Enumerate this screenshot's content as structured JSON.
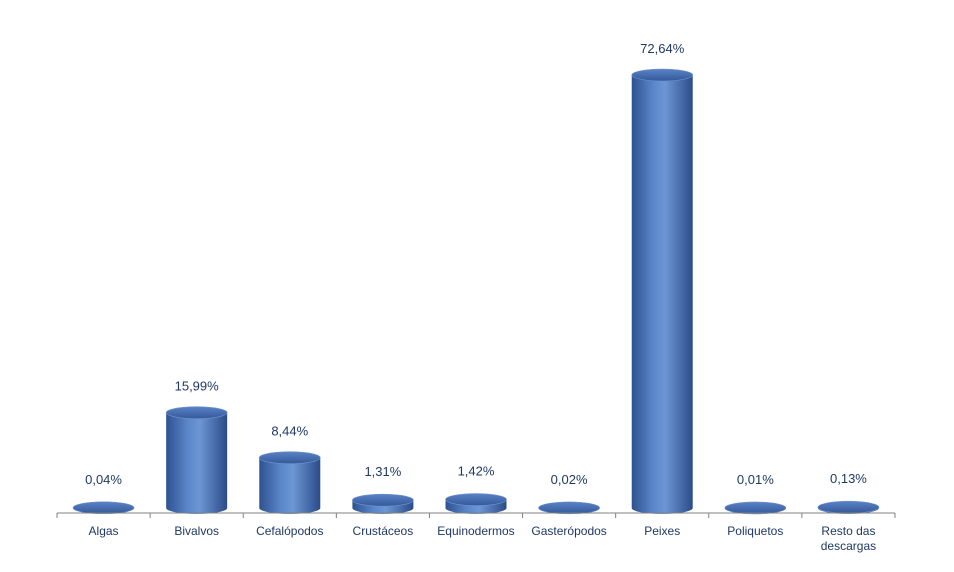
{
  "chart_data": {
    "type": "bar",
    "style": "3d-cylinder",
    "categories": [
      [
        "Algas"
      ],
      [
        "Bivalvos"
      ],
      [
        "Cefalópodos"
      ],
      [
        "Crustáceos"
      ],
      [
        "Equinodermos"
      ],
      [
        "Gasterópodos"
      ],
      [
        "Peixes"
      ],
      [
        "Poliquetos"
      ],
      [
        "Resto das",
        "descargas"
      ]
    ],
    "values": [
      0.04,
      15.99,
      8.44,
      1.31,
      1.42,
      0.02,
      72.64,
      0.01,
      0.13
    ],
    "data_labels": [
      "0,04%",
      "15,99%",
      "8,44%",
      "1,31%",
      "1,42%",
      "0,02%",
      "72,64%",
      "0,01%",
      "0,13%"
    ],
    "title": "",
    "xlabel": "",
    "ylabel": "",
    "ylim": [
      0,
      72.64
    ],
    "grid": false,
    "legend": "none",
    "colors": {
      "bar_dark": "#2e5290",
      "bar_mid": "#4f7fc6",
      "bar_light": "#8fb0e0",
      "bar_top": "#3f66ad",
      "label_text": "#1f3864",
      "axis": "#808080"
    }
  }
}
